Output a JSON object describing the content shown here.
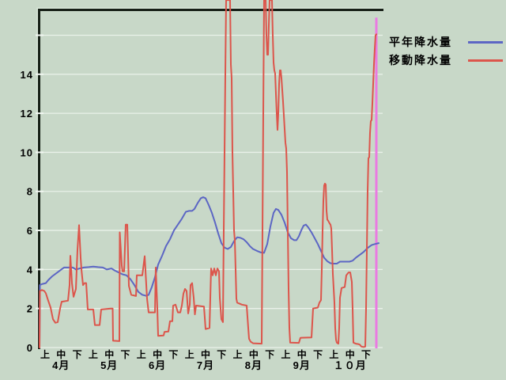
{
  "window": {
    "background_color": "#c8d8c8",
    "grid_color": "#e9f1e9",
    "tick_color": "#f2f7f2",
    "border_dark_color": "#161f16",
    "border_highlight_color": "#d9e6d9",
    "text_color": "#000000"
  },
  "legend": {
    "position": "top-right",
    "items": [
      {
        "label": "平年降水量",
        "color": "#5c66c4"
      },
      {
        "label": "移動降水量",
        "color": "#dc554b"
      }
    ]
  },
  "chart_data": {
    "type": "line",
    "title": "",
    "x_axis": {
      "months": [
        "4月",
        "5月",
        "6月",
        "7月",
        "8月",
        "9月",
        "１０月"
      ],
      "period_labels": [
        "上",
        "中",
        "下"
      ],
      "x_unit": "pixels from plot left edge; 0..434 spans 4月上旬〜10月下旬 (21 ten-day periods)"
    },
    "y_axis": {
      "tick_labels": [
        "0",
        "2",
        "4",
        "6",
        "8",
        "10",
        "12",
        "14"
      ],
      "ticks": [
        0,
        2,
        4,
        6,
        8,
        10,
        12,
        14
      ],
      "grid_values": [
        0,
        2,
        4,
        6,
        8,
        10,
        12,
        14,
        16
      ],
      "visible_range": [
        0,
        17.8
      ]
    },
    "grid": true,
    "legend_position": "top-right outside plot",
    "current_date_marker": {
      "x": 426,
      "y_from": 16.9,
      "y_to": 0,
      "color": "#ea7ae2"
    },
    "series": [
      {
        "name": "平年降水量",
        "color": "#5c66c4",
        "points": [
          [
            0,
            0
          ],
          [
            0.5,
            3.2
          ],
          [
            3,
            3.25
          ],
          [
            8,
            3.3
          ],
          [
            11,
            3.45
          ],
          [
            16,
            3.65
          ],
          [
            21,
            3.8
          ],
          [
            26,
            3.95
          ],
          [
            31,
            4.1
          ],
          [
            42,
            4.1
          ],
          [
            46,
            4.0
          ],
          [
            51,
            4.05
          ],
          [
            56,
            4.1
          ],
          [
            62,
            4.12
          ],
          [
            68,
            4.15
          ],
          [
            74,
            4.12
          ],
          [
            80,
            4.1
          ],
          [
            85,
            4.0
          ],
          [
            91,
            4.05
          ],
          [
            95,
            3.95
          ],
          [
            100,
            3.85
          ],
          [
            105,
            3.75
          ],
          [
            110,
            3.7
          ],
          [
            115,
            3.5
          ],
          [
            120,
            3.2
          ],
          [
            125,
            2.85
          ],
          [
            130,
            2.7
          ],
          [
            135,
            2.65
          ],
          [
            138,
            2.7
          ],
          [
            142,
            3.1
          ],
          [
            146,
            3.6
          ],
          [
            150,
            4.25
          ],
          [
            155,
            4.7
          ],
          [
            160,
            5.2
          ],
          [
            165,
            5.55
          ],
          [
            170,
            6.0
          ],
          [
            175,
            6.3
          ],
          [
            180,
            6.6
          ],
          [
            185,
            6.95
          ],
          [
            189,
            7.0
          ],
          [
            193,
            7.0
          ],
          [
            196,
            7.1
          ],
          [
            200,
            7.4
          ],
          [
            204,
            7.65
          ],
          [
            207,
            7.7
          ],
          [
            210,
            7.65
          ],
          [
            214,
            7.3
          ],
          [
            218,
            6.9
          ],
          [
            222,
            6.4
          ],
          [
            226,
            5.85
          ],
          [
            230,
            5.35
          ],
          [
            234,
            5.12
          ],
          [
            238,
            5.05
          ],
          [
            242,
            5.15
          ],
          [
            246,
            5.45
          ],
          [
            250,
            5.65
          ],
          [
            254,
            5.62
          ],
          [
            258,
            5.55
          ],
          [
            262,
            5.4
          ],
          [
            266,
            5.2
          ],
          [
            270,
            5.05
          ],
          [
            275,
            4.95
          ],
          [
            280,
            4.87
          ],
          [
            284,
            4.85
          ],
          [
            288,
            5.3
          ],
          [
            292,
            6.2
          ],
          [
            296,
            6.9
          ],
          [
            299,
            7.1
          ],
          [
            302,
            7.05
          ],
          [
            306,
            6.8
          ],
          [
            310,
            6.4
          ],
          [
            314,
            5.9
          ],
          [
            318,
            5.6
          ],
          [
            322,
            5.5
          ],
          [
            325,
            5.5
          ],
          [
            328,
            5.7
          ],
          [
            331,
            6.0
          ],
          [
            334,
            6.25
          ],
          [
            337,
            6.3
          ],
          [
            340,
            6.15
          ],
          [
            344,
            5.9
          ],
          [
            348,
            5.6
          ],
          [
            352,
            5.3
          ],
          [
            356,
            4.95
          ],
          [
            360,
            4.6
          ],
          [
            364,
            4.42
          ],
          [
            368,
            4.32
          ],
          [
            372,
            4.3
          ],
          [
            376,
            4.3
          ],
          [
            380,
            4.4
          ],
          [
            392,
            4.4
          ],
          [
            396,
            4.45
          ],
          [
            400,
            4.6
          ],
          [
            405,
            4.75
          ],
          [
            410,
            4.9
          ],
          [
            415,
            5.1
          ],
          [
            420,
            5.25
          ],
          [
            424,
            5.3
          ],
          [
            429,
            5.35
          ]
        ]
      },
      {
        "name": "移動降水量",
        "color": "#dc554b",
        "points": [
          [
            0,
            0
          ],
          [
            0.5,
            2.9
          ],
          [
            3,
            2.95
          ],
          [
            6,
            2.9
          ],
          [
            8,
            2.78
          ],
          [
            11,
            2.4
          ],
          [
            14,
            2.05
          ],
          [
            17,
            1.45
          ],
          [
            20,
            1.27
          ],
          [
            23,
            1.3
          ],
          [
            26,
            2.0
          ],
          [
            28,
            2.35
          ],
          [
            36,
            2.4
          ],
          [
            38,
            3.2
          ],
          [
            39,
            4.7
          ],
          [
            41,
            3.3
          ],
          [
            43,
            2.6
          ],
          [
            46,
            3.0
          ],
          [
            48,
            5.0
          ],
          [
            50,
            6.27
          ],
          [
            52,
            4.6
          ],
          [
            53,
            4.0
          ],
          [
            55,
            3.2
          ],
          [
            57,
            3.3
          ],
          [
            59,
            3.3
          ],
          [
            61,
            1.95
          ],
          [
            68,
            1.95
          ],
          [
            70,
            1.15
          ],
          [
            76,
            1.15
          ],
          [
            78,
            1.95
          ],
          [
            90,
            2.0
          ],
          [
            92.5,
            2.0
          ],
          [
            93,
            0.35
          ],
          [
            101,
            0.33
          ],
          [
            101.5,
            5.9
          ],
          [
            104,
            4.2
          ],
          [
            105,
            3.9
          ],
          [
            107,
            3.9
          ],
          [
            109,
            6.3
          ],
          [
            111,
            6.3
          ],
          [
            113,
            3.16
          ],
          [
            116,
            2.7
          ],
          [
            122,
            2.64
          ],
          [
            123,
            3.7
          ],
          [
            130,
            3.7
          ],
          [
            133,
            4.68
          ],
          [
            136,
            2.5
          ],
          [
            138,
            1.8
          ],
          [
            146,
            1.8
          ],
          [
            147,
            4.1
          ],
          [
            149,
            2.0
          ],
          [
            150,
            0.6
          ],
          [
            157,
            0.62
          ],
          [
            158,
            0.8
          ],
          [
            163,
            0.82
          ],
          [
            165,
            1.35
          ],
          [
            168,
            1.35
          ],
          [
            169,
            2.15
          ],
          [
            172,
            2.2
          ],
          [
            175,
            1.8
          ],
          [
            178,
            1.8
          ],
          [
            180,
            2.15
          ],
          [
            182,
            2.76
          ],
          [
            184,
            3.0
          ],
          [
            186,
            2.9
          ],
          [
            188,
            1.75
          ],
          [
            190,
            2.2
          ],
          [
            191,
            3.2
          ],
          [
            193,
            3.3
          ],
          [
            195,
            2.55
          ],
          [
            196.5,
            1.7
          ],
          [
            198,
            2.15
          ],
          [
            208,
            2.1
          ],
          [
            210,
            0.95
          ],
          [
            215,
            1.0
          ],
          [
            217,
            4.05
          ],
          [
            219,
            3.7
          ],
          [
            221,
            4.05
          ],
          [
            223,
            3.7
          ],
          [
            225,
            4.05
          ],
          [
            227,
            3.9
          ],
          [
            228,
            2.55
          ],
          [
            230,
            1.45
          ],
          [
            232,
            1.3
          ],
          [
            233,
            6.0
          ],
          [
            234,
            10.0
          ],
          [
            235,
            14.0
          ],
          [
            236,
            17.8
          ],
          [
            241,
            17.8
          ],
          [
            242,
            14.5
          ],
          [
            243,
            13.8
          ],
          [
            244,
            10.0
          ],
          [
            245,
            8.0
          ],
          [
            246,
            6.0
          ],
          [
            247,
            5.5
          ],
          [
            248,
            4.0
          ],
          [
            249,
            2.5
          ],
          [
            250,
            2.3
          ],
          [
            256,
            2.2
          ],
          [
            262,
            2.15
          ],
          [
            264,
            1.0
          ],
          [
            265,
            0.45
          ],
          [
            267,
            0.3
          ],
          [
            270,
            0.22
          ],
          [
            281,
            0.2
          ],
          [
            282,
            6.0
          ],
          [
            283,
            12.0
          ],
          [
            284,
            17.8
          ],
          [
            286,
            17.8
          ],
          [
            287,
            16.0
          ],
          [
            288,
            15.0
          ],
          [
            289,
            15.0
          ],
          [
            290,
            16.5
          ],
          [
            291,
            17.8
          ],
          [
            294,
            17.8
          ],
          [
            295,
            16.0
          ],
          [
            296,
            14.6
          ],
          [
            297,
            14.2
          ],
          [
            298,
            14.05
          ],
          [
            299,
            13.0
          ],
          [
            300,
            12.0
          ],
          [
            301,
            11.15
          ],
          [
            302,
            12.0
          ],
          [
            303,
            13.5
          ],
          [
            304,
            14.2
          ],
          [
            305,
            14.2
          ],
          [
            306,
            13.8
          ],
          [
            307,
            13.2
          ],
          [
            308,
            12.6
          ],
          [
            310,
            11.2
          ],
          [
            311,
            10.5
          ],
          [
            312,
            10.2
          ],
          [
            313,
            9.0
          ],
          [
            314,
            6.0
          ],
          [
            315,
            3.0
          ],
          [
            316,
            1.0
          ],
          [
            317,
            0.25
          ],
          [
            328,
            0.24
          ],
          [
            330,
            0.5
          ],
          [
            344,
            0.52
          ],
          [
            346,
            2.0
          ],
          [
            352,
            2.05
          ],
          [
            354,
            2.3
          ],
          [
            356,
            2.43
          ],
          [
            357,
            4.0
          ],
          [
            358,
            6.0
          ],
          [
            359,
            7.5
          ],
          [
            360,
            8.3
          ],
          [
            361,
            8.4
          ],
          [
            362,
            8.35
          ],
          [
            363,
            7.0
          ],
          [
            364,
            6.55
          ],
          [
            365,
            6.5
          ],
          [
            367,
            6.35
          ],
          [
            368,
            6.3
          ],
          [
            369,
            6.1
          ],
          [
            370,
            5.0
          ],
          [
            371,
            3.77
          ],
          [
            373,
            2.3
          ],
          [
            374,
            1.0
          ],
          [
            375,
            0.4
          ],
          [
            376,
            0.25
          ],
          [
            378,
            0.2
          ],
          [
            379,
            1.0
          ],
          [
            380,
            2.55
          ],
          [
            382,
            3.05
          ],
          [
            386,
            3.1
          ],
          [
            388,
            3.7
          ],
          [
            390,
            3.8
          ],
          [
            391,
            3.85
          ],
          [
            393,
            3.85
          ],
          [
            394,
            3.6
          ],
          [
            395,
            3.37
          ],
          [
            396,
            2.0
          ],
          [
            397,
            0.25
          ],
          [
            400,
            0.2
          ],
          [
            403,
            0.18
          ],
          [
            405,
            0.15
          ],
          [
            407,
            0.05
          ],
          [
            410,
            0.03
          ],
          [
            412,
            0.05
          ],
          [
            413,
            2.0
          ],
          [
            414,
            5.0
          ],
          [
            415,
            8.03
          ],
          [
            416,
            9.7
          ],
          [
            417,
            9.75
          ],
          [
            418,
            11.0
          ],
          [
            419,
            11.6
          ],
          [
            420,
            11.65
          ],
          [
            421,
            12.5
          ],
          [
            422,
            13.5
          ],
          [
            423,
            14.5
          ],
          [
            424,
            15.3
          ],
          [
            425,
            16.0
          ],
          [
            426,
            16.05
          ]
        ]
      }
    ]
  }
}
